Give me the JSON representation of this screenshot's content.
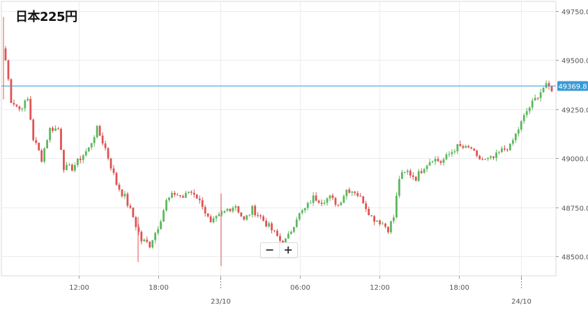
{
  "title": "日本225円",
  "zoom": {
    "minus_label": "−",
    "plus_label": "+"
  },
  "colors": {
    "up": "#5cb85c",
    "down": "#e05252",
    "price_line": "#3a9bd5",
    "grid": "#ececec"
  },
  "chart_data": {
    "type": "candlestick",
    "title": "日本225円",
    "ylim": [
      48400,
      49800
    ],
    "y_ticks": [
      48500,
      48750,
      49000,
      49250,
      49500,
      49750
    ],
    "y_tick_labels": [
      "48500.0",
      "48750.0",
      "49000.0",
      "49250.0",
      "49500.0",
      "49750.0"
    ],
    "x_tick_labels": [
      "12:00",
      "18:00",
      "23/10",
      "06:00",
      "12:00",
      "18:00",
      "24/10"
    ],
    "current_price": 49369.8,
    "current_price_label": "49369.8",
    "grid": true,
    "series_anchors": [
      [
        0,
        49500,
        0.8
      ],
      [
        2,
        49300,
        0.6
      ],
      [
        5,
        49250,
        0.5
      ],
      [
        8,
        49300,
        0.6
      ],
      [
        10,
        49100,
        0.7
      ],
      [
        13,
        49000,
        0.5
      ],
      [
        16,
        49150,
        0.5
      ],
      [
        19,
        49150,
        0.4
      ],
      [
        21,
        48950,
        0.6
      ],
      [
        24,
        48950,
        0.5
      ],
      [
        27,
        49000,
        0.5
      ],
      [
        30,
        49050,
        0.5
      ],
      [
        33,
        49150,
        0.5
      ],
      [
        36,
        49050,
        0.6
      ],
      [
        40,
        48870,
        0.7
      ],
      [
        43,
        48800,
        0.6
      ],
      [
        46,
        48700,
        0.7
      ],
      [
        49,
        48580,
        0.7
      ],
      [
        52,
        48560,
        0.5
      ],
      [
        55,
        48650,
        0.6
      ],
      [
        58,
        48780,
        0.6
      ],
      [
        61,
        48820,
        0.5
      ],
      [
        64,
        48800,
        0.4
      ],
      [
        66,
        48830,
        0.4
      ],
      [
        68,
        48820,
        0.4
      ],
      [
        71,
        48760,
        0.6
      ],
      [
        74,
        48660,
        0.7
      ],
      [
        77,
        48700,
        0.6
      ],
      [
        80,
        48740,
        0.6
      ],
      [
        83,
        48760,
        0.6
      ],
      [
        86,
        48680,
        0.6
      ],
      [
        89,
        48740,
        0.6
      ],
      [
        92,
        48700,
        0.6
      ],
      [
        95,
        48650,
        0.6
      ],
      [
        98,
        48600,
        0.7
      ],
      [
        100,
        48560,
        0.6
      ],
      [
        102,
        48600,
        0.6
      ],
      [
        105,
        48700,
        0.6
      ],
      [
        108,
        48740,
        0.5
      ],
      [
        111,
        48800,
        0.5
      ],
      [
        114,
        48780,
        0.5
      ],
      [
        117,
        48800,
        0.5
      ],
      [
        120,
        48760,
        0.5
      ],
      [
        123,
        48840,
        0.5
      ],
      [
        126,
        48830,
        0.5
      ],
      [
        129,
        48780,
        0.6
      ],
      [
        132,
        48700,
        0.7
      ],
      [
        135,
        48680,
        0.6
      ],
      [
        138,
        48640,
        0.6
      ],
      [
        140,
        48700,
        0.6
      ],
      [
        142,
        48900,
        0.7
      ],
      [
        145,
        48930,
        0.6
      ],
      [
        148,
        48900,
        0.6
      ],
      [
        151,
        48960,
        0.6
      ],
      [
        154,
        49000,
        0.5
      ],
      [
        157,
        48980,
        0.5
      ],
      [
        160,
        49020,
        0.5
      ],
      [
        163,
        49060,
        0.5
      ],
      [
        166,
        49050,
        0.5
      ],
      [
        168,
        49050,
        0.5
      ],
      [
        170,
        49000,
        0.5
      ],
      [
        173,
        48990,
        0.5
      ],
      [
        176,
        49000,
        0.5
      ],
      [
        179,
        49040,
        0.5
      ],
      [
        182,
        49060,
        0.6
      ],
      [
        185,
        49150,
        0.6
      ],
      [
        188,
        49240,
        0.6
      ],
      [
        191,
        49300,
        0.5
      ],
      [
        194,
        49360,
        0.5
      ]
    ]
  }
}
